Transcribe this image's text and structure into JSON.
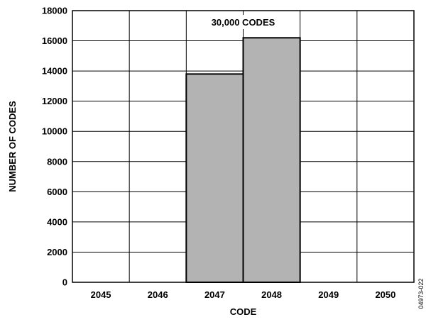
{
  "chart_data": {
    "type": "bar",
    "categories": [
      "2045",
      "2046",
      "2047",
      "2048",
      "2049",
      "2050"
    ],
    "values": [
      0,
      0,
      13800,
      16200,
      0,
      0
    ],
    "xlabel": "CODE",
    "ylabel": "NUMBER OF CODES",
    "ylim": [
      0,
      18000
    ],
    "yticks": [
      0,
      2000,
      4000,
      6000,
      8000,
      10000,
      12000,
      14000,
      16000,
      18000
    ],
    "grid": true,
    "bar_color": "#b3b3b3",
    "annotation": "30,000 CODES",
    "figure_id": "04973-022"
  }
}
